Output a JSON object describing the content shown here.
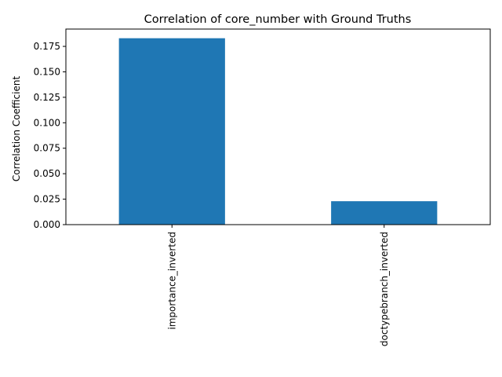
{
  "chart_data": {
    "type": "bar",
    "title": "Correlation of core_number with Ground Truths",
    "xlabel": "",
    "ylabel": "Correlation Coefficient",
    "categories": [
      "importance_inverted",
      "doctypebranch_inverted"
    ],
    "values": [
      0.183,
      0.023
    ],
    "ylim": [
      0,
      0.192
    ],
    "yticks": [
      "0.000",
      "0.025",
      "0.050",
      "0.075",
      "0.100",
      "0.125",
      "0.150",
      "0.175"
    ],
    "bar_color": "#1f77b4",
    "grid": false,
    "legend": "none"
  }
}
